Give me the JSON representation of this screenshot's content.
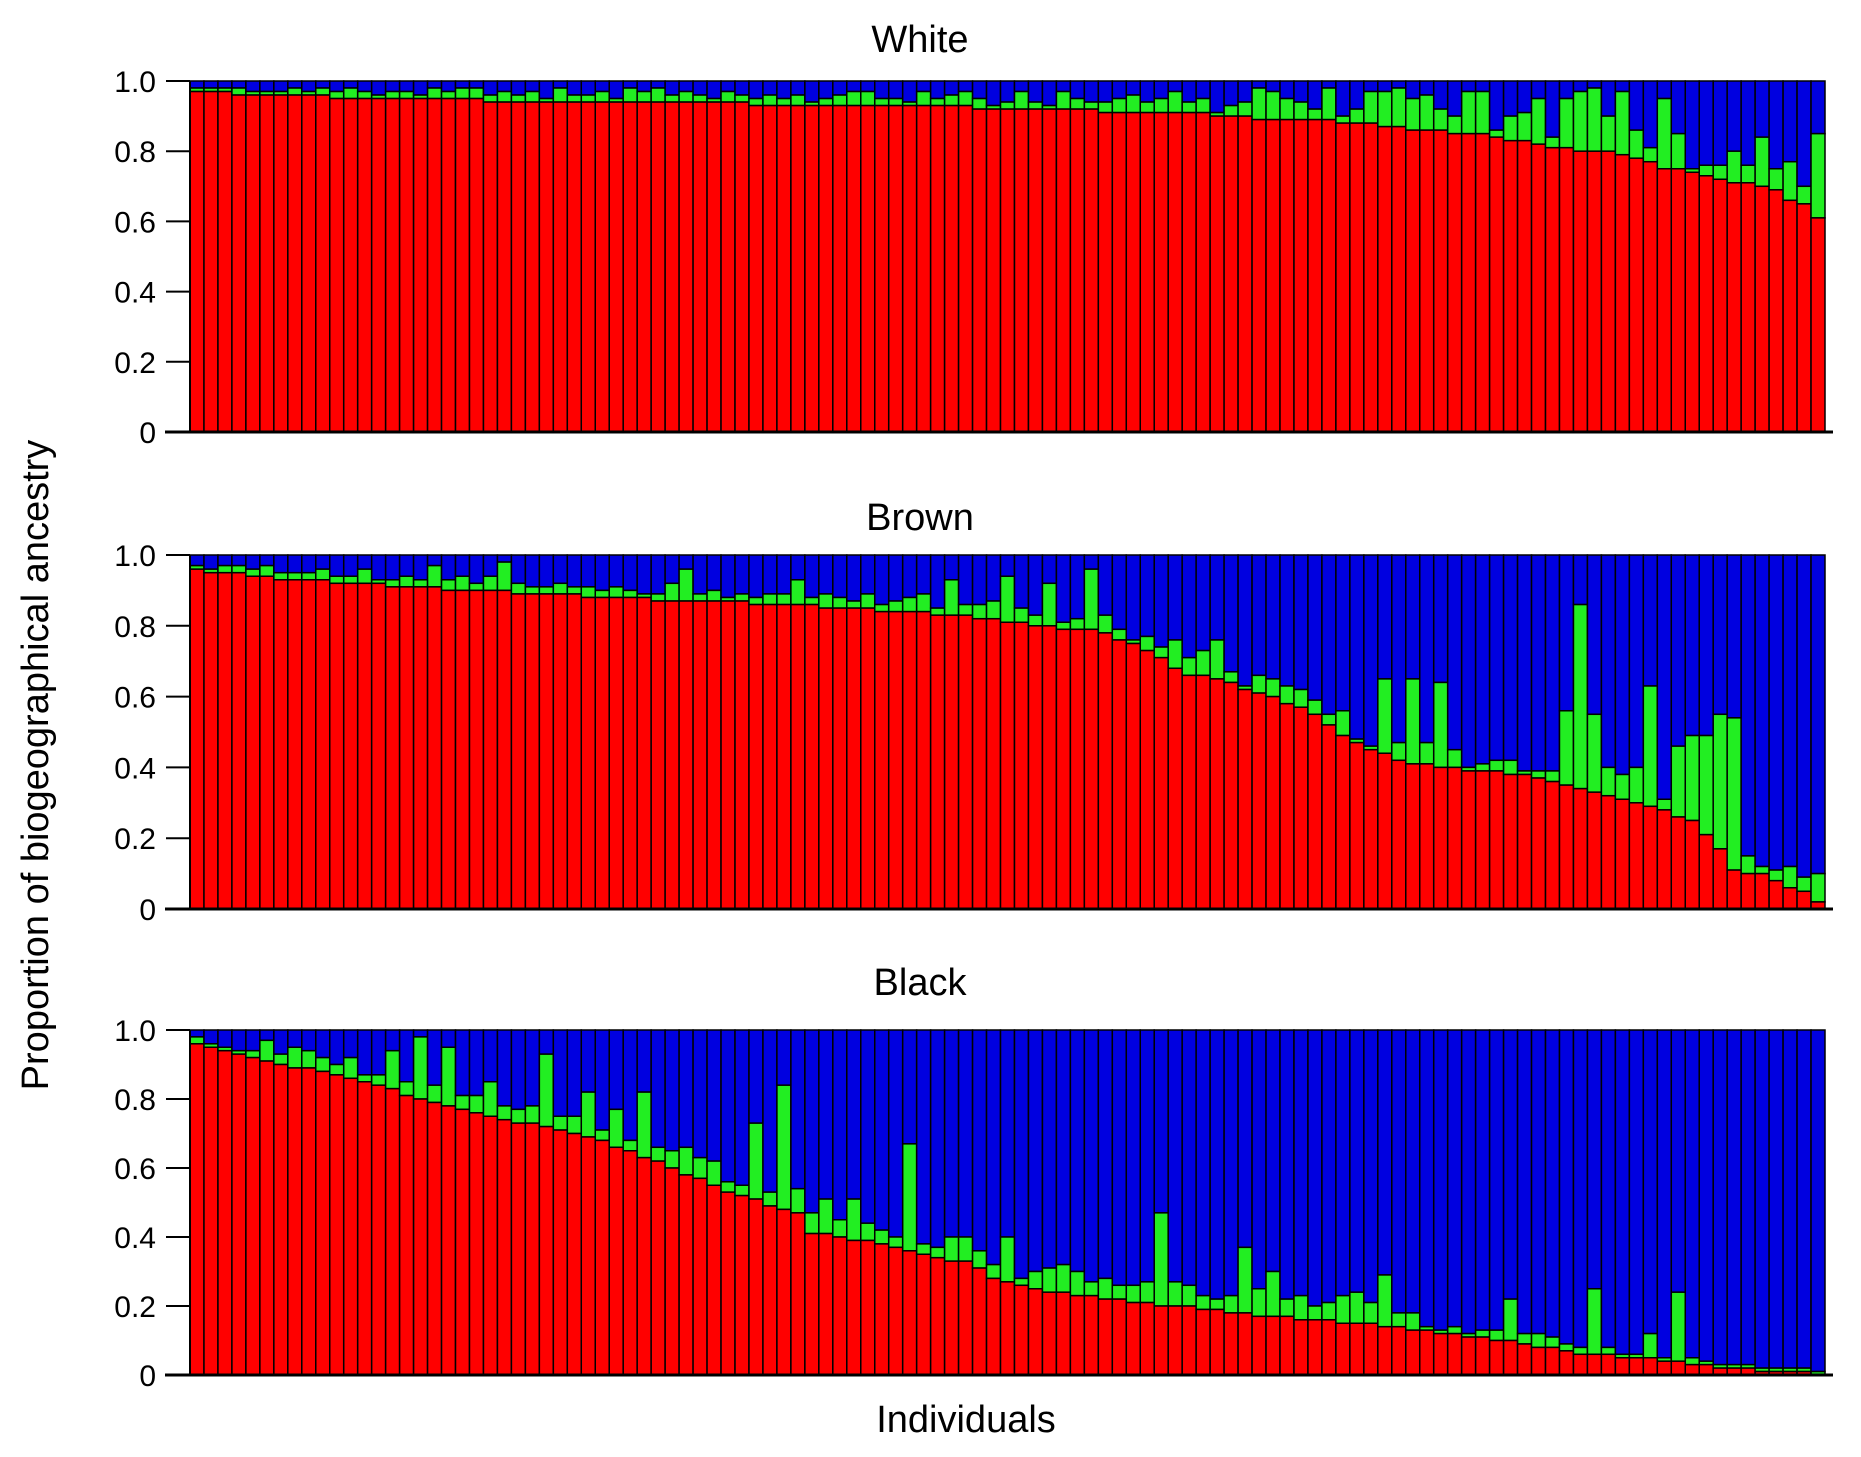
{
  "chart_data": {
    "type": "bar",
    "stacked": true,
    "ylabel": "Proportion of biogeographical ancestry",
    "xlabel": "Individuals",
    "ylim": [
      0,
      1.0
    ],
    "yticks": [
      "0",
      "0.2",
      "0.4",
      "0.6",
      "0.8",
      "1.0"
    ],
    "grid": false,
    "colors": {
      "red": "#ff0000",
      "green": "#22ee22",
      "blue": "#0000e0",
      "outline": "#000000"
    },
    "panels": [
      {
        "title": "White",
        "red": [
          0.97,
          0.97,
          0.97,
          0.96,
          0.96,
          0.96,
          0.96,
          0.96,
          0.96,
          0.96,
          0.95,
          0.95,
          0.95,
          0.95,
          0.95,
          0.95,
          0.95,
          0.95,
          0.95,
          0.95,
          0.95,
          0.94,
          0.94,
          0.94,
          0.94,
          0.94,
          0.94,
          0.94,
          0.94,
          0.94,
          0.94,
          0.94,
          0.94,
          0.94,
          0.94,
          0.94,
          0.94,
          0.94,
          0.94,
          0.94,
          0.93,
          0.93,
          0.93,
          0.93,
          0.93,
          0.93,
          0.93,
          0.93,
          0.93,
          0.93,
          0.93,
          0.93,
          0.93,
          0.93,
          0.93,
          0.93,
          0.92,
          0.92,
          0.92,
          0.92,
          0.92,
          0.92,
          0.92,
          0.92,
          0.92,
          0.91,
          0.91,
          0.91,
          0.91,
          0.91,
          0.91,
          0.91,
          0.91,
          0.9,
          0.9,
          0.9,
          0.89,
          0.89,
          0.89,
          0.89,
          0.89,
          0.89,
          0.88,
          0.88,
          0.88,
          0.87,
          0.87,
          0.86,
          0.86,
          0.86,
          0.85,
          0.85,
          0.85,
          0.84,
          0.83,
          0.83,
          0.82,
          0.81,
          0.81,
          0.8,
          0.8,
          0.8,
          0.79,
          0.78,
          0.77,
          0.75,
          0.75,
          0.74,
          0.73,
          0.72,
          0.71,
          0.71,
          0.7,
          0.69,
          0.66,
          0.65,
          0.61
        ],
        "green": [
          0.01,
          0.01,
          0.01,
          0.02,
          0.01,
          0.01,
          0.01,
          0.02,
          0.01,
          0.02,
          0.02,
          0.03,
          0.02,
          0.01,
          0.02,
          0.02,
          0.01,
          0.03,
          0.02,
          0.03,
          0.03,
          0.02,
          0.03,
          0.02,
          0.03,
          0.01,
          0.04,
          0.02,
          0.02,
          0.03,
          0.01,
          0.04,
          0.03,
          0.04,
          0.02,
          0.03,
          0.02,
          0.01,
          0.03,
          0.02,
          0.02,
          0.03,
          0.02,
          0.03,
          0.01,
          0.02,
          0.03,
          0.04,
          0.04,
          0.02,
          0.02,
          0.01,
          0.04,
          0.02,
          0.03,
          0.04,
          0.03,
          0.01,
          0.02,
          0.05,
          0.02,
          0.01,
          0.05,
          0.03,
          0.02,
          0.03,
          0.04,
          0.05,
          0.03,
          0.04,
          0.06,
          0.03,
          0.04,
          0.01,
          0.03,
          0.04,
          0.09,
          0.08,
          0.06,
          0.05,
          0.03,
          0.09,
          0.02,
          0.04,
          0.09,
          0.1,
          0.11,
          0.09,
          0.1,
          0.06,
          0.05,
          0.12,
          0.12,
          0.02,
          0.07,
          0.08,
          0.13,
          0.03,
          0.14,
          0.17,
          0.18,
          0.1,
          0.18,
          0.08,
          0.04,
          0.2,
          0.1,
          0.01,
          0.03,
          0.04,
          0.09,
          0.05,
          0.14,
          0.06,
          0.11,
          0.05,
          0.24
        ]
      },
      {
        "title": "Brown",
        "red": [
          0.96,
          0.95,
          0.95,
          0.95,
          0.94,
          0.94,
          0.93,
          0.93,
          0.93,
          0.93,
          0.92,
          0.92,
          0.92,
          0.92,
          0.91,
          0.91,
          0.91,
          0.91,
          0.9,
          0.9,
          0.9,
          0.9,
          0.9,
          0.89,
          0.89,
          0.89,
          0.89,
          0.89,
          0.88,
          0.88,
          0.88,
          0.88,
          0.88,
          0.87,
          0.87,
          0.87,
          0.87,
          0.87,
          0.87,
          0.87,
          0.86,
          0.86,
          0.86,
          0.86,
          0.86,
          0.85,
          0.85,
          0.85,
          0.85,
          0.84,
          0.84,
          0.84,
          0.84,
          0.83,
          0.83,
          0.83,
          0.82,
          0.82,
          0.81,
          0.81,
          0.8,
          0.8,
          0.79,
          0.79,
          0.79,
          0.78,
          0.76,
          0.75,
          0.73,
          0.71,
          0.68,
          0.66,
          0.66,
          0.65,
          0.64,
          0.62,
          0.61,
          0.6,
          0.58,
          0.57,
          0.55,
          0.52,
          0.49,
          0.47,
          0.45,
          0.44,
          0.42,
          0.41,
          0.41,
          0.4,
          0.4,
          0.39,
          0.39,
          0.39,
          0.38,
          0.38,
          0.37,
          0.36,
          0.35,
          0.34,
          0.33,
          0.32,
          0.31,
          0.3,
          0.29,
          0.28,
          0.26,
          0.25,
          0.21,
          0.17,
          0.11,
          0.1,
          0.1,
          0.08,
          0.06,
          0.05,
          0.02
        ],
        "green": [
          0.01,
          0.01,
          0.02,
          0.02,
          0.02,
          0.03,
          0.02,
          0.02,
          0.02,
          0.03,
          0.02,
          0.02,
          0.04,
          0.01,
          0.02,
          0.03,
          0.02,
          0.06,
          0.03,
          0.04,
          0.02,
          0.04,
          0.08,
          0.03,
          0.02,
          0.02,
          0.03,
          0.02,
          0.03,
          0.02,
          0.03,
          0.02,
          0.01,
          0.02,
          0.05,
          0.09,
          0.02,
          0.03,
          0.01,
          0.02,
          0.02,
          0.03,
          0.03,
          0.07,
          0.02,
          0.04,
          0.03,
          0.02,
          0.04,
          0.02,
          0.03,
          0.04,
          0.05,
          0.02,
          0.1,
          0.03,
          0.04,
          0.05,
          0.13,
          0.04,
          0.03,
          0.12,
          0.02,
          0.03,
          0.17,
          0.05,
          0.03,
          0.01,
          0.04,
          0.03,
          0.08,
          0.05,
          0.07,
          0.11,
          0.03,
          0.01,
          0.05,
          0.05,
          0.05,
          0.05,
          0.04,
          0.03,
          0.07,
          0.01,
          0.01,
          0.21,
          0.05,
          0.24,
          0.06,
          0.24,
          0.05,
          0.01,
          0.02,
          0.03,
          0.04,
          0.01,
          0.02,
          0.03,
          0.21,
          0.52,
          0.22,
          0.08,
          0.07,
          0.1,
          0.34,
          0.03,
          0.2,
          0.24,
          0.28,
          0.38,
          0.43,
          0.05,
          0.02,
          0.03,
          0.06,
          0.04,
          0.08
        ]
      },
      {
        "title": "Black",
        "red": [
          0.96,
          0.95,
          0.94,
          0.93,
          0.92,
          0.91,
          0.9,
          0.89,
          0.89,
          0.88,
          0.87,
          0.86,
          0.85,
          0.84,
          0.83,
          0.81,
          0.8,
          0.79,
          0.78,
          0.77,
          0.76,
          0.75,
          0.74,
          0.73,
          0.73,
          0.72,
          0.71,
          0.7,
          0.69,
          0.68,
          0.66,
          0.65,
          0.63,
          0.62,
          0.6,
          0.58,
          0.57,
          0.55,
          0.53,
          0.52,
          0.51,
          0.49,
          0.48,
          0.47,
          0.41,
          0.41,
          0.4,
          0.39,
          0.39,
          0.38,
          0.37,
          0.36,
          0.35,
          0.34,
          0.33,
          0.33,
          0.31,
          0.28,
          0.27,
          0.26,
          0.25,
          0.24,
          0.24,
          0.23,
          0.23,
          0.22,
          0.22,
          0.21,
          0.21,
          0.2,
          0.2,
          0.2,
          0.19,
          0.19,
          0.18,
          0.18,
          0.17,
          0.17,
          0.17,
          0.16,
          0.16,
          0.16,
          0.15,
          0.15,
          0.15,
          0.14,
          0.14,
          0.13,
          0.13,
          0.12,
          0.12,
          0.11,
          0.11,
          0.1,
          0.1,
          0.09,
          0.08,
          0.08,
          0.07,
          0.06,
          0.06,
          0.06,
          0.05,
          0.05,
          0.05,
          0.04,
          0.04,
          0.03,
          0.03,
          0.02,
          0.02,
          0.02,
          0.01,
          0.01,
          0.01,
          0.01,
          0.0
        ],
        "green": [
          0.02,
          0.01,
          0.01,
          0.01,
          0.02,
          0.06,
          0.03,
          0.06,
          0.05,
          0.04,
          0.03,
          0.06,
          0.02,
          0.03,
          0.11,
          0.04,
          0.18,
          0.05,
          0.17,
          0.04,
          0.05,
          0.1,
          0.04,
          0.04,
          0.05,
          0.21,
          0.04,
          0.05,
          0.13,
          0.03,
          0.11,
          0.03,
          0.19,
          0.04,
          0.05,
          0.08,
          0.06,
          0.07,
          0.03,
          0.03,
          0.22,
          0.04,
          0.36,
          0.07,
          0.06,
          0.1,
          0.05,
          0.12,
          0.05,
          0.04,
          0.03,
          0.31,
          0.03,
          0.03,
          0.07,
          0.07,
          0.05,
          0.04,
          0.13,
          0.02,
          0.05,
          0.07,
          0.08,
          0.07,
          0.04,
          0.06,
          0.04,
          0.05,
          0.06,
          0.27,
          0.07,
          0.06,
          0.04,
          0.03,
          0.05,
          0.19,
          0.08,
          0.13,
          0.05,
          0.07,
          0.04,
          0.05,
          0.08,
          0.09,
          0.06,
          0.15,
          0.04,
          0.05,
          0.01,
          0.01,
          0.02,
          0.01,
          0.02,
          0.03,
          0.12,
          0.03,
          0.04,
          0.03,
          0.02,
          0.02,
          0.19,
          0.02,
          0.01,
          0.01,
          0.07,
          0.01,
          0.2,
          0.02,
          0.01,
          0.01,
          0.01,
          0.01,
          0.01,
          0.01,
          0.01,
          0.01,
          0.01
        ]
      }
    ]
  }
}
